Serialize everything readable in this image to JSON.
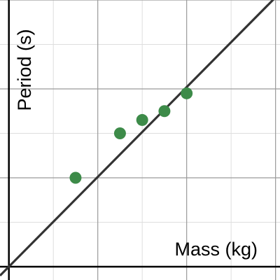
{
  "chart_data": {
    "type": "scatter",
    "xlabel": "Mass (kg)",
    "ylabel": "Period (s)",
    "xlim": [
      -0.2,
      6.1
    ],
    "ylim": [
      -0.3,
      6.0
    ],
    "grid": true,
    "minor_grid": true,
    "points": [
      {
        "x": 1.5,
        "y": 2.0
      },
      {
        "x": 2.5,
        "y": 3.0
      },
      {
        "x": 3.0,
        "y": 3.3
      },
      {
        "x": 3.5,
        "y": 3.5
      },
      {
        "x": 4.0,
        "y": 3.9
      }
    ],
    "fit_line": {
      "slope": 1.01,
      "intercept": 0.0
    },
    "colors": {
      "points": "#3d8b49",
      "fit_line": "#333333",
      "major_grid": "#9a9a9a",
      "minor_grid": "#dedede",
      "axes": "#000000"
    }
  }
}
